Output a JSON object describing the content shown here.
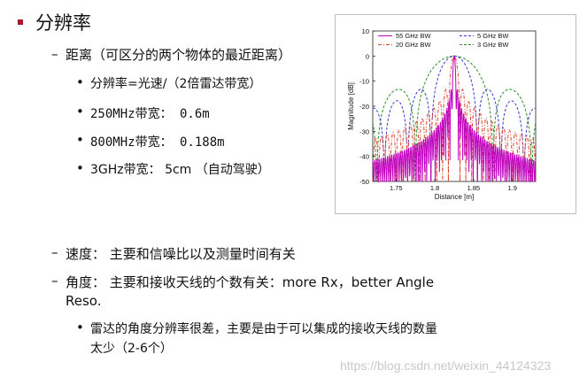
{
  "slide": {
    "title": "分辨率",
    "sections": [
      {
        "text": "距离（可区分的两个物体的最近距离）"
      },
      {
        "text": "速度：  主要和信噪比以及测量时间有关"
      },
      {
        "text": "角度：  主要和接收天线的个数有关：more Rx，better Angle",
        "text2": "Reso."
      }
    ],
    "range_bullets": [
      "分辨率=光速/（2倍雷达带宽）",
      "250MHz带宽：  0.6m",
      "800MHz带宽：  0.188m",
      "3GHz带宽：  5cm  （自动驾驶）"
    ],
    "angle_bullet": {
      "line1": "雷达的角度分辨率很差，主要是由于可以集成的接收天线的数量",
      "line2": "太少（2-6个）"
    },
    "watermark": "https://blog.csdn.net/weixin_44124323"
  },
  "chart_data": {
    "type": "line",
    "xlabel": "Distance [m]",
    "ylabel": "Magnitude [dB]",
    "xlim": [
      1.72,
      1.93
    ],
    "ylim": [
      -50,
      10
    ],
    "xticks": [
      "1.75",
      "1.8",
      "1.85",
      "1.9"
    ],
    "yticks": [
      "10",
      "0",
      "-10",
      "-20",
      "-30",
      "-40",
      "-50"
    ],
    "grid": false,
    "legend_position": "top",
    "peak_x": 1.825,
    "series": [
      {
        "name": "55 GHz BW",
        "color": "#c000c0",
        "style": "solid",
        "bandwidth_ghz": 55
      },
      {
        "name": "20 GHz BW",
        "color": "#e0402a",
        "style": "dashdot",
        "bandwidth_ghz": 20
      },
      {
        "name": "5 GHz BW",
        "color": "#3a3ad0",
        "style": "dashed",
        "bandwidth_ghz": 5
      },
      {
        "name": "3 GHz BW",
        "color": "#2e8b2e",
        "style": "dashed",
        "bandwidth_ghz": 3
      }
    ]
  }
}
